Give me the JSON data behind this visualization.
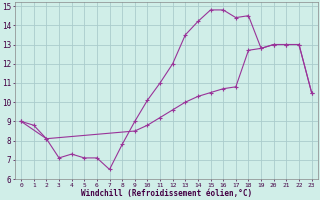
{
  "xlabel": "Windchill (Refroidissement éolien,°C)",
  "bg_color": "#d0eee8",
  "grid_color": "#aacccc",
  "line_color": "#993399",
  "xlim": [
    -0.5,
    23.5
  ],
  "ylim": [
    6,
    15.2
  ],
  "xticks": [
    0,
    1,
    2,
    3,
    4,
    5,
    6,
    7,
    8,
    9,
    10,
    11,
    12,
    13,
    14,
    15,
    16,
    17,
    18,
    19,
    20,
    21,
    22,
    23
  ],
  "yticks": [
    6,
    7,
    8,
    9,
    10,
    11,
    12,
    13,
    14,
    15
  ],
  "line1_x": [
    0,
    1,
    2,
    3,
    4,
    5,
    6,
    7,
    8,
    9,
    10,
    11,
    12,
    13,
    14,
    15,
    16,
    17,
    18,
    19,
    20,
    21,
    22,
    23
  ],
  "line1_y": [
    9.0,
    8.8,
    8.1,
    7.1,
    7.3,
    7.1,
    7.1,
    6.5,
    7.8,
    9.0,
    10.1,
    11.0,
    12.0,
    13.5,
    14.2,
    14.8,
    14.8,
    14.4,
    14.5,
    12.8,
    13.0,
    13.0,
    13.0,
    10.5
  ],
  "line2_x": [
    0,
    2,
    9,
    10,
    11,
    12,
    13,
    14,
    15,
    16,
    17,
    18,
    19,
    20,
    21,
    22,
    23
  ],
  "line2_y": [
    9.0,
    8.1,
    8.5,
    8.8,
    9.2,
    9.6,
    10.0,
    10.3,
    10.5,
    10.7,
    10.8,
    12.7,
    12.8,
    13.0,
    13.0,
    13.0,
    10.5
  ]
}
